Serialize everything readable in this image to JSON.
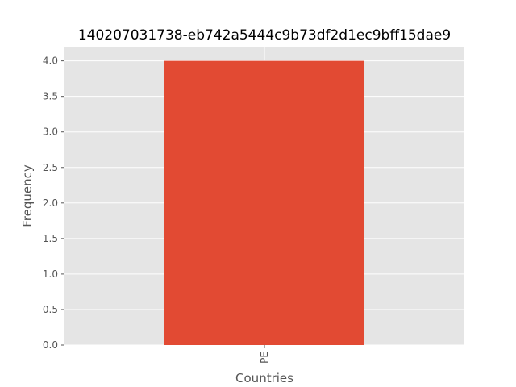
{
  "chart_data": {
    "type": "bar",
    "title": "140207031738-eb742a5444c9b73df2d1ec9bff15dae9",
    "xlabel": "Countries",
    "ylabel": "Frequency",
    "categories": [
      "PE"
    ],
    "values": [
      4
    ],
    "ylim": [
      0,
      4.2
    ],
    "yticks": [
      0.0,
      0.5,
      1.0,
      1.5,
      2.0,
      2.5,
      3.0,
      3.5,
      4.0
    ],
    "grid": true,
    "legend": "none",
    "colors": {
      "bar": "#E24A33",
      "plot_background": "#E5E5E5",
      "grid": "#FFFFFF"
    }
  }
}
